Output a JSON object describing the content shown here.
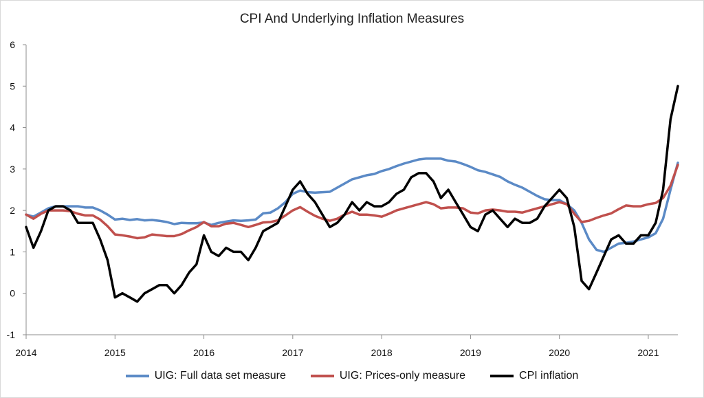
{
  "chart_data": {
    "type": "line",
    "title": "CPI And Underlying Inflation Measures",
    "xlabel": "",
    "ylabel": "",
    "ylim": [
      -1,
      6
    ],
    "yticks": [
      -1,
      0,
      1,
      2,
      3,
      4,
      5,
      6
    ],
    "xlim": [
      2014.0,
      2021.333
    ],
    "xticks": [
      2014,
      2015,
      2016,
      2017,
      2018,
      2019,
      2020,
      2021
    ],
    "grid": false,
    "legend_position": "bottom",
    "series": [
      {
        "name": "UIG: Full data set measure",
        "color": "#5b8ac6",
        "x": [
          2014.0,
          2014.083,
          2014.167,
          2014.25,
          2014.333,
          2014.417,
          2014.5,
          2014.583,
          2014.667,
          2014.75,
          2014.833,
          2014.917,
          2015.0,
          2015.083,
          2015.167,
          2015.25,
          2015.333,
          2015.417,
          2015.5,
          2015.583,
          2015.667,
          2015.75,
          2015.833,
          2015.917,
          2016.0,
          2016.083,
          2016.167,
          2016.25,
          2016.333,
          2016.417,
          2016.5,
          2016.583,
          2016.667,
          2016.75,
          2016.833,
          2016.917,
          2017.0,
          2017.083,
          2017.167,
          2017.25,
          2017.333,
          2017.417,
          2017.5,
          2017.583,
          2017.667,
          2017.75,
          2017.833,
          2017.917,
          2018.0,
          2018.083,
          2018.167,
          2018.25,
          2018.333,
          2018.417,
          2018.5,
          2018.583,
          2018.667,
          2018.75,
          2018.833,
          2018.917,
          2019.0,
          2019.083,
          2019.167,
          2019.25,
          2019.333,
          2019.417,
          2019.5,
          2019.583,
          2019.667,
          2019.75,
          2019.833,
          2019.917,
          2020.0,
          2020.083,
          2020.167,
          2020.25,
          2020.333,
          2020.417,
          2020.5,
          2020.583,
          2020.667,
          2020.75,
          2020.833,
          2020.917,
          2021.0,
          2021.083,
          2021.167,
          2021.25,
          2021.333
        ],
        "values": [
          1.9,
          1.85,
          1.95,
          2.05,
          2.1,
          2.1,
          2.1,
          2.1,
          2.07,
          2.07,
          2.0,
          1.9,
          1.78,
          1.8,
          1.77,
          1.79,
          1.76,
          1.77,
          1.75,
          1.72,
          1.67,
          1.7,
          1.69,
          1.69,
          1.71,
          1.65,
          1.7,
          1.73,
          1.76,
          1.75,
          1.76,
          1.78,
          1.93,
          1.95,
          2.05,
          2.2,
          2.4,
          2.48,
          2.44,
          2.43,
          2.44,
          2.45,
          2.55,
          2.65,
          2.75,
          2.8,
          2.85,
          2.88,
          2.95,
          3.0,
          3.07,
          3.13,
          3.18,
          3.23,
          3.25,
          3.25,
          3.25,
          3.2,
          3.18,
          3.12,
          3.05,
          2.97,
          2.93,
          2.87,
          2.81,
          2.7,
          2.62,
          2.55,
          2.45,
          2.35,
          2.27,
          2.25,
          2.25,
          2.15,
          2.0,
          1.7,
          1.3,
          1.05,
          1.0,
          1.1,
          1.2,
          1.22,
          1.25,
          1.3,
          1.35,
          1.45,
          1.8,
          2.5,
          3.15
        ]
      },
      {
        "name": "UIG: Prices-only measure",
        "color": "#c0504d",
        "x": [
          2014.0,
          2014.083,
          2014.167,
          2014.25,
          2014.333,
          2014.417,
          2014.5,
          2014.583,
          2014.667,
          2014.75,
          2014.833,
          2014.917,
          2015.0,
          2015.083,
          2015.167,
          2015.25,
          2015.333,
          2015.417,
          2015.5,
          2015.583,
          2015.667,
          2015.75,
          2015.833,
          2015.917,
          2016.0,
          2016.083,
          2016.167,
          2016.25,
          2016.333,
          2016.417,
          2016.5,
          2016.583,
          2016.667,
          2016.75,
          2016.833,
          2016.917,
          2017.0,
          2017.083,
          2017.167,
          2017.25,
          2017.333,
          2017.417,
          2017.5,
          2017.583,
          2017.667,
          2017.75,
          2017.833,
          2017.917,
          2018.0,
          2018.083,
          2018.167,
          2018.25,
          2018.333,
          2018.417,
          2018.5,
          2018.583,
          2018.667,
          2018.75,
          2018.833,
          2018.917,
          2019.0,
          2019.083,
          2019.167,
          2019.25,
          2019.333,
          2019.417,
          2019.5,
          2019.583,
          2019.667,
          2019.75,
          2019.833,
          2019.917,
          2020.0,
          2020.083,
          2020.167,
          2020.25,
          2020.333,
          2020.417,
          2020.5,
          2020.583,
          2020.667,
          2020.75,
          2020.833,
          2020.917,
          2021.0,
          2021.083,
          2021.167,
          2021.25,
          2021.333
        ],
        "values": [
          1.9,
          1.8,
          1.92,
          2.0,
          2.0,
          2.0,
          1.98,
          1.92,
          1.88,
          1.88,
          1.78,
          1.62,
          1.42,
          1.4,
          1.37,
          1.33,
          1.35,
          1.42,
          1.4,
          1.38,
          1.38,
          1.43,
          1.52,
          1.6,
          1.72,
          1.62,
          1.62,
          1.68,
          1.7,
          1.65,
          1.6,
          1.65,
          1.71,
          1.72,
          1.76,
          1.88,
          2.0,
          2.08,
          1.97,
          1.87,
          1.8,
          1.75,
          1.8,
          1.9,
          1.97,
          1.9,
          1.9,
          1.88,
          1.85,
          1.92,
          2.0,
          2.05,
          2.1,
          2.15,
          2.2,
          2.15,
          2.05,
          2.07,
          2.07,
          2.05,
          1.95,
          1.93,
          2.0,
          2.02,
          2.0,
          1.97,
          1.97,
          1.95,
          2.0,
          2.05,
          2.1,
          2.15,
          2.2,
          2.15,
          1.92,
          1.72,
          1.75,
          1.82,
          1.88,
          1.93,
          2.03,
          2.12,
          2.1,
          2.1,
          2.15,
          2.18,
          2.3,
          2.6,
          3.1
        ]
      },
      {
        "name": "CPI inflation",
        "color": "#000000",
        "x": [
          2014.0,
          2014.083,
          2014.167,
          2014.25,
          2014.333,
          2014.417,
          2014.5,
          2014.583,
          2014.667,
          2014.75,
          2014.833,
          2014.917,
          2015.0,
          2015.083,
          2015.167,
          2015.25,
          2015.333,
          2015.417,
          2015.5,
          2015.583,
          2015.667,
          2015.75,
          2015.833,
          2015.917,
          2016.0,
          2016.083,
          2016.167,
          2016.25,
          2016.333,
          2016.417,
          2016.5,
          2016.583,
          2016.667,
          2016.75,
          2016.833,
          2016.917,
          2017.0,
          2017.083,
          2017.167,
          2017.25,
          2017.333,
          2017.417,
          2017.5,
          2017.583,
          2017.667,
          2017.75,
          2017.833,
          2017.917,
          2018.0,
          2018.083,
          2018.167,
          2018.25,
          2018.333,
          2018.417,
          2018.5,
          2018.583,
          2018.667,
          2018.75,
          2018.833,
          2018.917,
          2019.0,
          2019.083,
          2019.167,
          2019.25,
          2019.333,
          2019.417,
          2019.5,
          2019.583,
          2019.667,
          2019.75,
          2019.833,
          2019.917,
          2020.0,
          2020.083,
          2020.167,
          2020.25,
          2020.333,
          2020.417,
          2020.5,
          2020.583,
          2020.667,
          2020.75,
          2020.833,
          2020.917,
          2021.0,
          2021.083,
          2021.167,
          2021.25,
          2021.333
        ],
        "values": [
          1.6,
          1.1,
          1.5,
          2.0,
          2.1,
          2.1,
          2.0,
          1.7,
          1.7,
          1.7,
          1.3,
          0.8,
          -0.1,
          0.0,
          -0.1,
          -0.2,
          0.0,
          0.1,
          0.2,
          0.2,
          0.0,
          0.2,
          0.5,
          0.7,
          1.4,
          1.0,
          0.9,
          1.1,
          1.0,
          1.0,
          0.8,
          1.1,
          1.5,
          1.6,
          1.7,
          2.1,
          2.5,
          2.7,
          2.4,
          2.2,
          1.9,
          1.6,
          1.7,
          1.9,
          2.2,
          2.0,
          2.2,
          2.1,
          2.1,
          2.2,
          2.4,
          2.5,
          2.8,
          2.9,
          2.9,
          2.7,
          2.3,
          2.5,
          2.2,
          1.9,
          1.6,
          1.5,
          1.9,
          2.0,
          1.8,
          1.6,
          1.8,
          1.7,
          1.7,
          1.8,
          2.1,
          2.3,
          2.5,
          2.3,
          1.6,
          0.3,
          0.1,
          0.5,
          0.9,
          1.3,
          1.4,
          1.2,
          1.2,
          1.4,
          1.4,
          1.7,
          2.5,
          4.2,
          5.0
        ]
      }
    ]
  }
}
